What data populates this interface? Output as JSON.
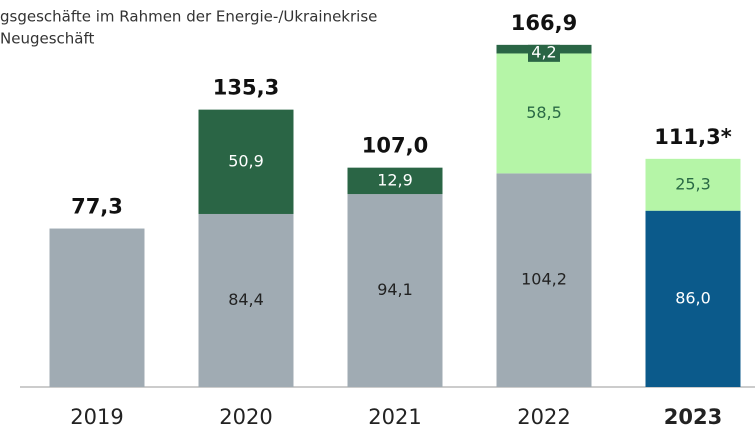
{
  "chart_data": {
    "type": "stacked_bar",
    "legend_text": [
      "gsgeschäfte im Rahmen der Energie-/Ukrainekrise",
      "Neugeschäft"
    ],
    "categories": [
      "2019",
      "2020",
      "2021",
      "2022",
      "2023"
    ],
    "highlight_category": 4,
    "series": [
      {
        "color": "#a0abb3",
        "text_color": "#222222",
        "values": [
          77.3,
          84.4,
          94.1,
          104.2,
          null
        ],
        "value_labels": [
          null,
          "84,4",
          "94,1",
          "104,2",
          null
        ]
      },
      {
        "color": "#0b5a8b",
        "text_color": "#ffffff",
        "values": [
          null,
          null,
          null,
          null,
          86.0
        ],
        "value_labels": [
          null,
          null,
          null,
          null,
          "86,0"
        ]
      },
      {
        "color": "#b5f5a7",
        "text_color": "#2a6a45",
        "values": [
          null,
          null,
          null,
          58.5,
          25.3
        ],
        "value_labels": [
          null,
          null,
          null,
          "58,5",
          "25,3"
        ]
      },
      {
        "color": "#2a6545",
        "text_color": "#ffffff",
        "values": [
          null,
          50.9,
          12.9,
          4.2,
          null
        ],
        "value_labels": [
          null,
          "50,9",
          "12,9",
          "4,2",
          null
        ]
      }
    ],
    "totals": [
      77.3,
      135.3,
      107.0,
      166.9,
      111.3
    ],
    "total_labels": [
      "77,3",
      "135,3",
      "107,0",
      "166,9",
      "111,3*"
    ],
    "ylim": [
      0,
      170
    ]
  }
}
